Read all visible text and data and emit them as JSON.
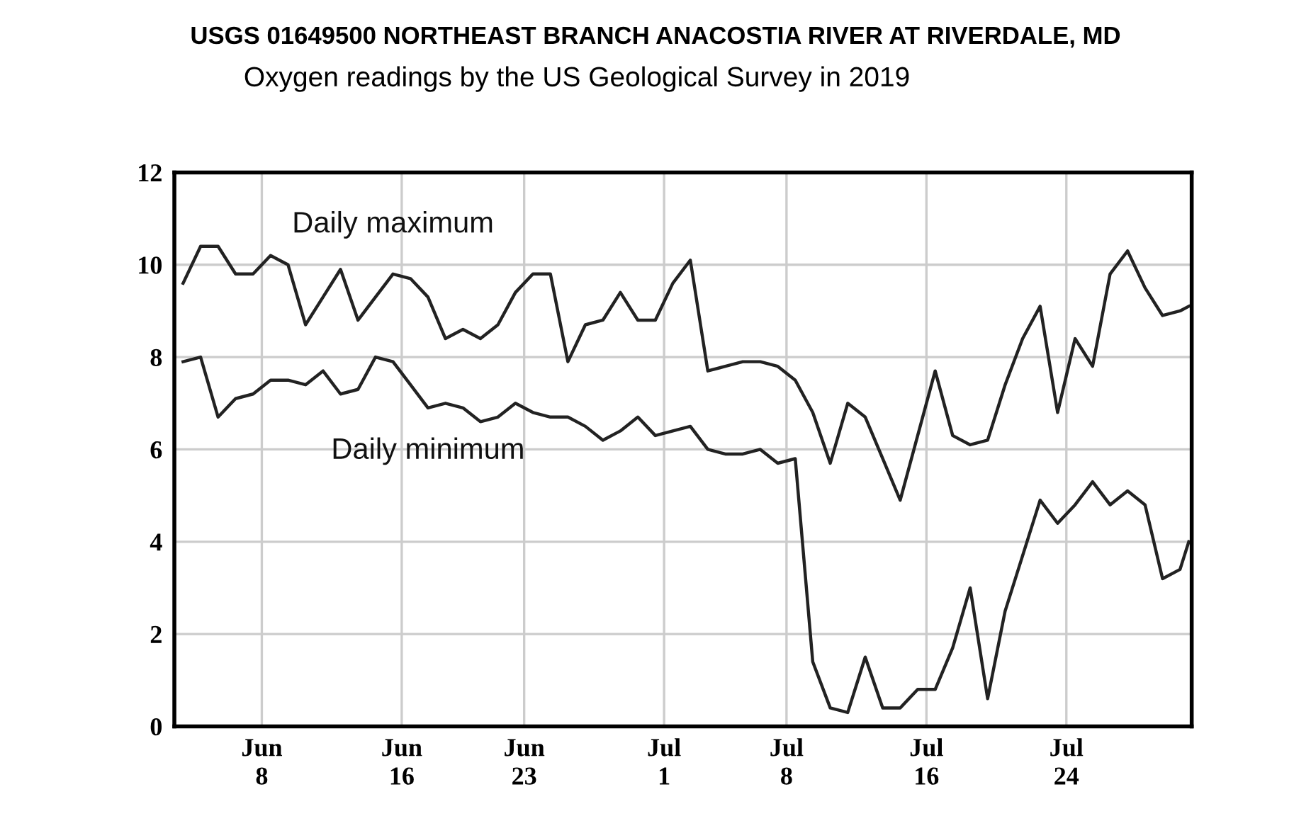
{
  "chart_data": {
    "type": "line",
    "title": "USGS 01649500 NORTHEAST BRANCH ANACOSTIA RIVER AT RIVERDALE, MD",
    "subtitle": "Oxygen readings by the US Geological Survey in 2019",
    "x": [
      "2019-06-03T12:00",
      "2019-06-04T12:00",
      "2019-06-05T12:00",
      "2019-06-06T12:00",
      "2019-06-07T12:00",
      "2019-06-08T12:00",
      "2019-06-09T12:00",
      "2019-06-10T12:00",
      "2019-06-11T12:00",
      "2019-06-12T12:00",
      "2019-06-13T12:00",
      "2019-06-14T12:00",
      "2019-06-15T12:00",
      "2019-06-16T12:00",
      "2019-06-17T12:00",
      "2019-06-18T12:00",
      "2019-06-19T12:00",
      "2019-06-20T12:00",
      "2019-06-21T12:00",
      "2019-06-22T12:00",
      "2019-06-23T12:00",
      "2019-06-24T12:00",
      "2019-06-25T12:00",
      "2019-06-26T12:00",
      "2019-06-27T12:00",
      "2019-06-28T12:00",
      "2019-06-29T12:00",
      "2019-06-30T12:00",
      "2019-07-01T12:00",
      "2019-07-02T12:00",
      "2019-07-03T12:00",
      "2019-07-04T12:00",
      "2019-07-05T12:00",
      "2019-07-06T12:00",
      "2019-07-07T12:00",
      "2019-07-08T12:00",
      "2019-07-09T12:00",
      "2019-07-10T12:00",
      "2019-07-11T12:00",
      "2019-07-12T12:00",
      "2019-07-13T12:00",
      "2019-07-14T12:00",
      "2019-07-15T12:00",
      "2019-07-16T12:00",
      "2019-07-17T12:00",
      "2019-07-18T12:00",
      "2019-07-19T12:00",
      "2019-07-20T12:00",
      "2019-07-21T12:00",
      "2019-07-22T12:00",
      "2019-07-23T12:00",
      "2019-07-24T12:00",
      "2019-07-25T12:00",
      "2019-07-26T12:00",
      "2019-07-27T12:00",
      "2019-07-28T12:00",
      "2019-07-29T12:00",
      "2019-07-30T12:00",
      "2019-07-31"
    ],
    "series": [
      {
        "name": "Daily maximum",
        "color": "#222222",
        "values": [
          9.6,
          10.4,
          10.4,
          9.8,
          9.8,
          10.2,
          10.0,
          8.7,
          9.3,
          9.9,
          8.8,
          9.3,
          9.8,
          9.7,
          9.3,
          8.4,
          8.6,
          8.4,
          8.7,
          9.4,
          9.8,
          9.8,
          7.9,
          8.7,
          8.8,
          9.4,
          8.8,
          8.8,
          9.6,
          10.1,
          7.7,
          7.8,
          7.9,
          7.9,
          7.8,
          7.5,
          6.8,
          5.7,
          7.0,
          6.7,
          5.8,
          4.9,
          6.3,
          7.7,
          6.3,
          6.1,
          6.2,
          7.4,
          8.4,
          9.1,
          6.8,
          8.4,
          7.8,
          9.8,
          10.3,
          9.5,
          8.9,
          9.0,
          9.1
        ]
      },
      {
        "name": "Daily minimum",
        "color": "#222222",
        "values": [
          7.9,
          8.0,
          6.7,
          7.1,
          7.2,
          7.5,
          7.5,
          7.4,
          7.7,
          7.2,
          7.3,
          8.0,
          7.9,
          7.4,
          6.9,
          7.0,
          6.9,
          6.6,
          6.7,
          7.0,
          6.8,
          6.7,
          6.7,
          6.5,
          6.2,
          6.4,
          6.7,
          6.3,
          6.4,
          6.5,
          6.0,
          5.9,
          5.9,
          6.0,
          5.7,
          5.8,
          1.4,
          0.4,
          0.3,
          1.5,
          0.4,
          0.4,
          0.8,
          0.8,
          1.7,
          3.0,
          0.6,
          2.5,
          3.7,
          4.9,
          4.4,
          4.8,
          5.3,
          4.8,
          5.1,
          4.8,
          3.2,
          3.4,
          4.0
        ]
      }
    ],
    "xlim": [
      "2019-06-03",
      "2019-07-31T04:00"
    ],
    "ylim": [
      0,
      12
    ],
    "yticks": [
      0,
      2,
      4,
      6,
      8,
      10,
      12
    ],
    "xticks": [
      {
        "value": "2019-06-08",
        "label": "Jun\n8"
      },
      {
        "value": "2019-06-16",
        "label": "Jun\n16"
      },
      {
        "value": "2019-06-23",
        "label": "Jun\n23"
      },
      {
        "value": "2019-07-01",
        "label": "Jul\n1"
      },
      {
        "value": "2019-07-08",
        "label": "Jul\n8"
      },
      {
        "value": "2019-07-16",
        "label": "Jul\n16"
      },
      {
        "value": "2019-07-24",
        "label": "Jul\n24"
      }
    ],
    "grid": true,
    "legend": false,
    "marker": "none",
    "line_style": "solid"
  }
}
